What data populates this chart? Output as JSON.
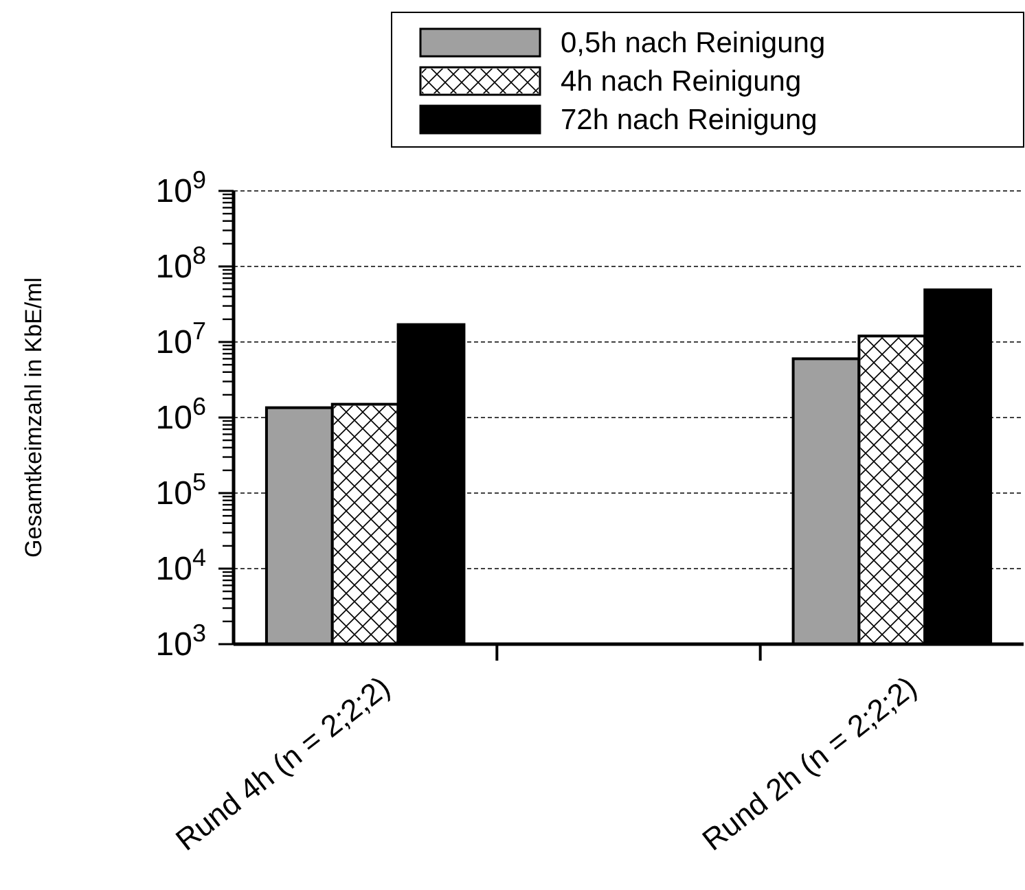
{
  "chart_data": {
    "type": "bar",
    "ylabel": "Gesamtkeimzahl in KbE/ml",
    "categories": [
      "Rund 4h (n = 2;2;2)",
      null,
      "Rund 2h (n = 2;2;2)"
    ],
    "series": [
      {
        "name": "0,5h nach Reinigung",
        "color": "#a0a0a0",
        "values": [
          1350000,
          null,
          6000000
        ]
      },
      {
        "name": "4h nach Reinigung",
        "color": "#ffffff",
        "values": [
          1500000,
          null,
          12000000
        ]
      },
      {
        "name": "72h nach Reinigung",
        "color": "#000000",
        "values": [
          17000000,
          null,
          49000000
        ]
      }
    ],
    "log": true,
    "ylim": [
      1000,
      1000000000
    ],
    "yticks": [
      {
        "value": 1000,
        "label": "10$^{3}$"
      },
      {
        "value": 10000,
        "label": "10$^{4}$"
      },
      {
        "value": 100000,
        "label": "10$^{5}$"
      },
      {
        "value": 1000000,
        "label": "10$^{6}$"
      },
      {
        "value": 10000000,
        "label": "10$^{7}$"
      },
      {
        "value": 100000000,
        "label": "10$^{8}$"
      },
      {
        "value": 1000000000,
        "label": "10$^{9}$"
      }
    ],
    "grid": "y",
    "legend": "top right"
  }
}
